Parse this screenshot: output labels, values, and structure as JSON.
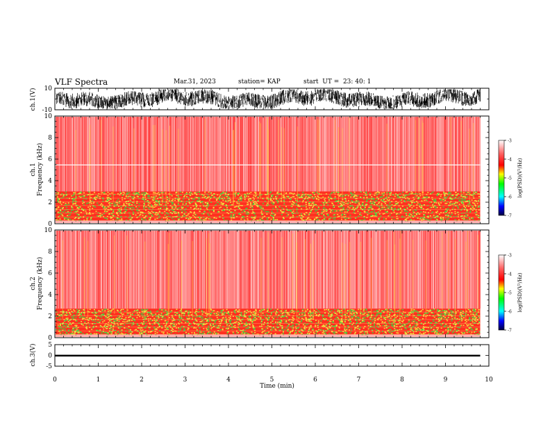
{
  "header": {
    "title": "VLF Spectra",
    "date": "Mar.31, 2023",
    "station": "station= KAP",
    "start": "start  UT =  23: 40: 1"
  },
  "colors": {
    "spectrogram_background": "#ffffff",
    "spectrogram_fill": "#ff2a2a",
    "band_yellow": "#f0e040",
    "band_green": "#40d040",
    "trace": "#000000"
  },
  "chart_data": [
    {
      "type": "line",
      "panel": "ch1-waveform",
      "ylabel": "ch.1(V)",
      "ylim": [
        -10,
        10
      ],
      "yticks": [
        "10",
        "-10"
      ],
      "x": "time",
      "description_of_series": "dense noisy voltage trace oscillating roughly between -9 and +9 V",
      "amplitude_range": [
        -9,
        9
      ]
    },
    {
      "type": "heatmap",
      "panel": "ch1-spectrogram",
      "ylabel": "ch.1",
      "ylabel2": "Frequency (kHz)",
      "ylim": [
        0,
        10
      ],
      "yticks": [
        "0",
        "2",
        "4",
        "6",
        "8",
        "10"
      ],
      "xlim": [
        0,
        9.8
      ],
      "bands": [
        {
          "from_khz": 0.3,
          "to_khz": 3.0,
          "level": "strong (yellow-green)"
        },
        {
          "from_khz": 3.0,
          "to_khz": 10.0,
          "level": "moderate (red, speckled)"
        }
      ],
      "colorbar": {
        "label": "log(PSD)(V²/Hz)",
        "range": [
          -7,
          -3
        ],
        "ticks": [
          "-3",
          "-4",
          "-5",
          "-6",
          "-7"
        ]
      }
    },
    {
      "type": "heatmap",
      "panel": "ch2-spectrogram",
      "ylabel": "ch.2",
      "ylabel2": "Frequency (kHz)",
      "ylim": [
        0,
        10
      ],
      "yticks": [
        "0",
        "2",
        "4",
        "6",
        "8",
        "10"
      ],
      "xlim": [
        0,
        9.8
      ],
      "bands": [
        {
          "from_khz": 0.3,
          "to_khz": 2.7,
          "level": "strong (yellow-green)"
        },
        {
          "from_khz": 2.7,
          "to_khz": 10.0,
          "level": "moderate (red, speckled)"
        }
      ],
      "colorbar": {
        "label": "log(PSD)(V²/Hz)",
        "range": [
          -7,
          -3
        ],
        "ticks": [
          "-3",
          "-4",
          "-5",
          "-6",
          "-7"
        ]
      }
    },
    {
      "type": "line",
      "panel": "ch3-waveform",
      "ylabel": "ch.3(V)",
      "ylim": [
        -5,
        5
      ],
      "yticks": [
        "5",
        "0",
        "-5"
      ],
      "approx_value_band": [
        -0.5,
        0.3
      ]
    }
  ],
  "xaxis": {
    "label": "Time (min)",
    "ticks": [
      "0",
      "1",
      "2",
      "3",
      "4",
      "5",
      "6",
      "7",
      "8",
      "9",
      "10"
    ],
    "xlim": [
      0,
      10
    ]
  }
}
